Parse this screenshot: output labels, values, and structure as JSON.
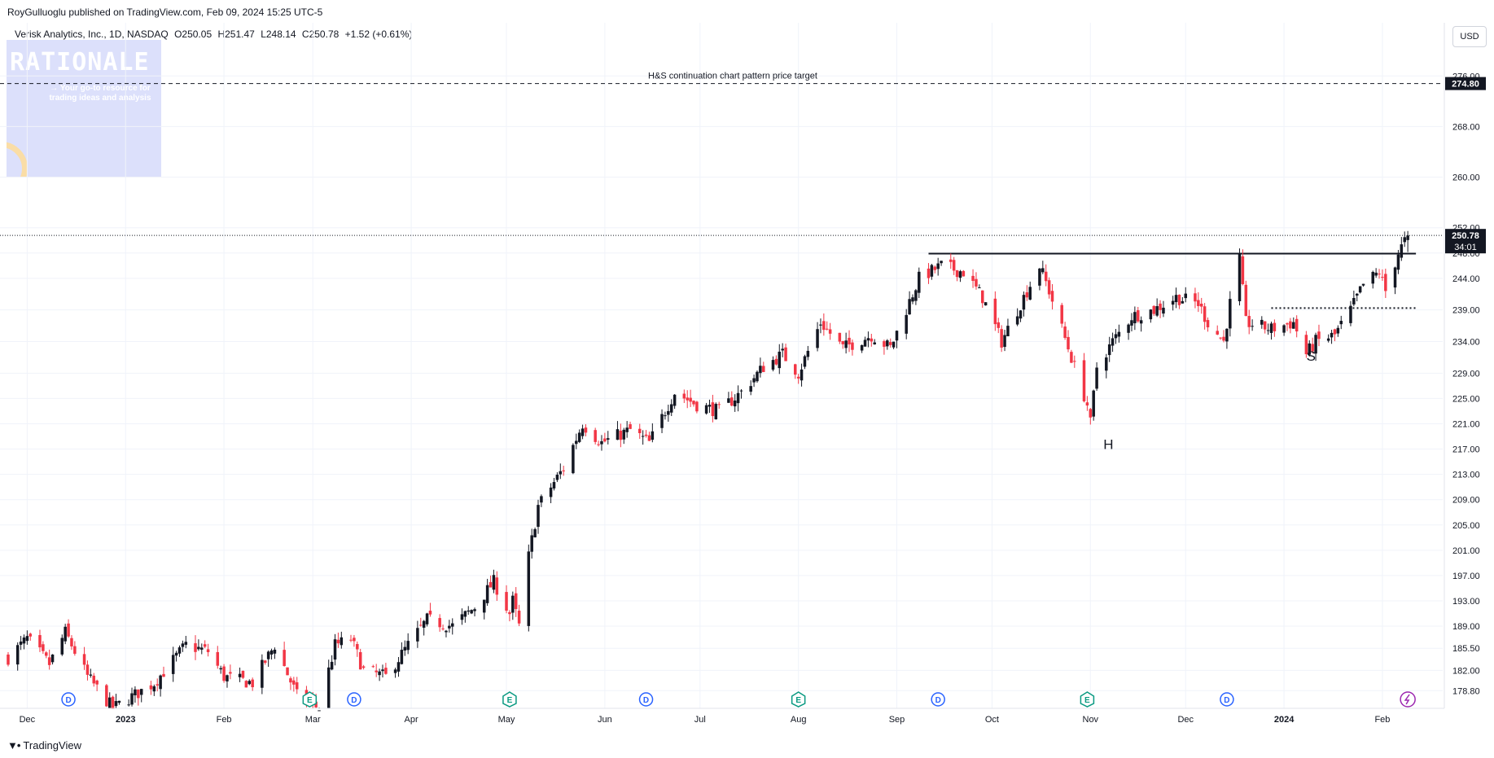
{
  "header": {
    "publisher_line": "RoyGulluoglu published on TradingView.com, Feb 09, 2024 15:25 UTC-5",
    "symbol": "Verisk Analytics, Inc., 1D, NASDAQ",
    "ohlc_open": "O250.05",
    "ohlc_high": "H251.47",
    "ohlc_low": "L248.14",
    "ohlc_close": "C250.78",
    "ohlc_change": "+1.52 (+0.61%)",
    "currency": "USD"
  },
  "watermark": {
    "title": "RATIONALE",
    "tagline": "→ Your go-to resource for trading ideas and analysis"
  },
  "footer": {
    "brand": "TradingView"
  },
  "colors": {
    "up": "#131722",
    "down": "#f23645",
    "grid": "#f0f3fa",
    "axis_text": "#131722",
    "event_blue": "#2962ff",
    "event_green": "#089981",
    "event_purple": "#9c27b0"
  },
  "chart_data": {
    "type": "candlestick",
    "ylim": [
      176.0,
      279.0
    ],
    "y_ticks": [
      "276.00",
      "268.00",
      "260.00",
      "252.00",
      "248.00",
      "244.00",
      "239.00",
      "234.00",
      "229.00",
      "225.00",
      "221.00",
      "217.00",
      "213.00",
      "209.00",
      "205.00",
      "201.00",
      "197.00",
      "193.00",
      "189.00",
      "185.50",
      "182.00",
      "178.80"
    ],
    "y_tick_values": [
      276,
      268,
      260,
      252,
      248,
      244,
      239,
      234,
      229,
      225,
      221,
      217,
      213,
      209,
      205,
      201,
      197,
      193,
      189,
      185.5,
      182,
      178.8
    ],
    "x_labels": [
      {
        "label": "Dec",
        "date": "2022-12-01"
      },
      {
        "label": "2023",
        "date": "2023-01-01",
        "bold": true
      },
      {
        "label": "Feb",
        "date": "2023-02-01"
      },
      {
        "label": "Mar",
        "date": "2023-03-01"
      },
      {
        "label": "Apr",
        "date": "2023-04-01"
      },
      {
        "label": "May",
        "date": "2023-05-01"
      },
      {
        "label": "Jun",
        "date": "2023-06-01"
      },
      {
        "label": "Jul",
        "date": "2023-07-01"
      },
      {
        "label": "Aug",
        "date": "2023-08-01"
      },
      {
        "label": "Sep",
        "date": "2023-09-01"
      },
      {
        "label": "Oct",
        "date": "2023-10-01"
      },
      {
        "label": "Nov",
        "date": "2023-11-01"
      },
      {
        "label": "Dec",
        "date": "2023-12-01"
      },
      {
        "label": "2024",
        "date": "2024-01-01",
        "bold": true
      },
      {
        "label": "Feb",
        "date": "2024-02-01"
      }
    ],
    "last_price": {
      "value": 250.78,
      "label": "250.78",
      "countdown": "34:01"
    },
    "target": {
      "value": 274.8,
      "label": "274.80",
      "text": "H&S continuation chart pattern price target"
    },
    "neckline": {
      "value": 247.9,
      "from": "2023-09-11",
      "to": "2024-02-09"
    },
    "shoulder_line": {
      "value": 239.3,
      "from": "2023-12-28",
      "to": "2024-02-09"
    },
    "annotations": [
      {
        "text": "H",
        "date": "2023-11-02",
        "value": 217.0
      },
      {
        "text": "S",
        "date": "2024-01-05",
        "value": 231.0
      }
    ],
    "events": [
      {
        "type": "D",
        "date": "2022-12-14"
      },
      {
        "type": "E",
        "date": "2023-02-28"
      },
      {
        "type": "D",
        "date": "2023-03-14"
      },
      {
        "type": "E",
        "date": "2023-05-02"
      },
      {
        "type": "D",
        "date": "2023-06-14"
      },
      {
        "type": "E",
        "date": "2023-08-01"
      },
      {
        "type": "D",
        "date": "2023-09-14"
      },
      {
        "type": "E",
        "date": "2023-10-31"
      },
      {
        "type": "D",
        "date": "2023-12-14"
      },
      {
        "type": "split",
        "date": "2024-02-09"
      }
    ],
    "anchors": [
      [
        "2022-11-25",
        184
      ],
      [
        "2022-12-01",
        187
      ],
      [
        "2022-12-08",
        183
      ],
      [
        "2022-12-13",
        188
      ],
      [
        "2022-12-20",
        181
      ],
      [
        "2022-12-28",
        176
      ],
      [
        "2023-01-10",
        180
      ],
      [
        "2023-01-20",
        186
      ],
      [
        "2023-01-27",
        185
      ],
      [
        "2023-02-01",
        181
      ],
      [
        "2023-02-10",
        180
      ],
      [
        "2023-02-17",
        186
      ],
      [
        "2023-02-24",
        178
      ],
      [
        "2023-03-03",
        176
      ],
      [
        "2023-03-08",
        186
      ],
      [
        "2023-03-13",
        187
      ],
      [
        "2023-03-17",
        182
      ],
      [
        "2023-03-24",
        181
      ],
      [
        "2023-03-31",
        186
      ],
      [
        "2023-04-06",
        190
      ],
      [
        "2023-04-14",
        189
      ],
      [
        "2023-04-21",
        192
      ],
      [
        "2023-04-27",
        196
      ],
      [
        "2023-05-02",
        191
      ],
      [
        "2023-05-03",
        193
      ],
      [
        "2023-05-05",
        189
      ],
      [
        "2023-05-08",
        200
      ],
      [
        "2023-05-11",
        208
      ],
      [
        "2023-05-15",
        211
      ],
      [
        "2023-05-19",
        214
      ],
      [
        "2023-05-25",
        221
      ],
      [
        "2023-05-31",
        218
      ],
      [
        "2023-06-09",
        220
      ],
      [
        "2023-06-15",
        218
      ],
      [
        "2023-06-23",
        226
      ],
      [
        "2023-06-30",
        224
      ],
      [
        "2023-07-07",
        223
      ],
      [
        "2023-07-14",
        226
      ],
      [
        "2023-07-21",
        230
      ],
      [
        "2023-07-27",
        232
      ],
      [
        "2023-08-01",
        229
      ],
      [
        "2023-08-08",
        237
      ],
      [
        "2023-08-15",
        233
      ],
      [
        "2023-08-24",
        235
      ],
      [
        "2023-08-30",
        233
      ],
      [
        "2023-09-08",
        244
      ],
      [
        "2023-09-15",
        246
      ],
      [
        "2023-09-22",
        245
      ],
      [
        "2023-09-28",
        241
      ],
      [
        "2023-10-04",
        234
      ],
      [
        "2023-10-11",
        241
      ],
      [
        "2023-10-16",
        246
      ],
      [
        "2023-10-19",
        242
      ],
      [
        "2023-10-25",
        233
      ],
      [
        "2023-10-31",
        224
      ],
      [
        "2023-11-01",
        221
      ],
      [
        "2023-11-03",
        230
      ],
      [
        "2023-11-08",
        234
      ],
      [
        "2023-11-14",
        238
      ],
      [
        "2023-11-21",
        239
      ],
      [
        "2023-11-28",
        241
      ],
      [
        "2023-12-05",
        240
      ],
      [
        "2023-12-08",
        237
      ],
      [
        "2023-12-13",
        234
      ],
      [
        "2023-12-15",
        240
      ],
      [
        "2023-12-18",
        247
      ],
      [
        "2023-12-20",
        237
      ],
      [
        "2023-12-28",
        236
      ],
      [
        "2024-01-04",
        237
      ],
      [
        "2024-01-08",
        232
      ],
      [
        "2024-01-11",
        234
      ],
      [
        "2024-01-17",
        235
      ],
      [
        "2024-01-22",
        239
      ],
      [
        "2024-01-26",
        243
      ],
      [
        "2024-01-31",
        245
      ],
      [
        "2024-02-02",
        242
      ],
      [
        "2024-02-06",
        248
      ],
      [
        "2024-02-09",
        250.78
      ]
    ]
  }
}
